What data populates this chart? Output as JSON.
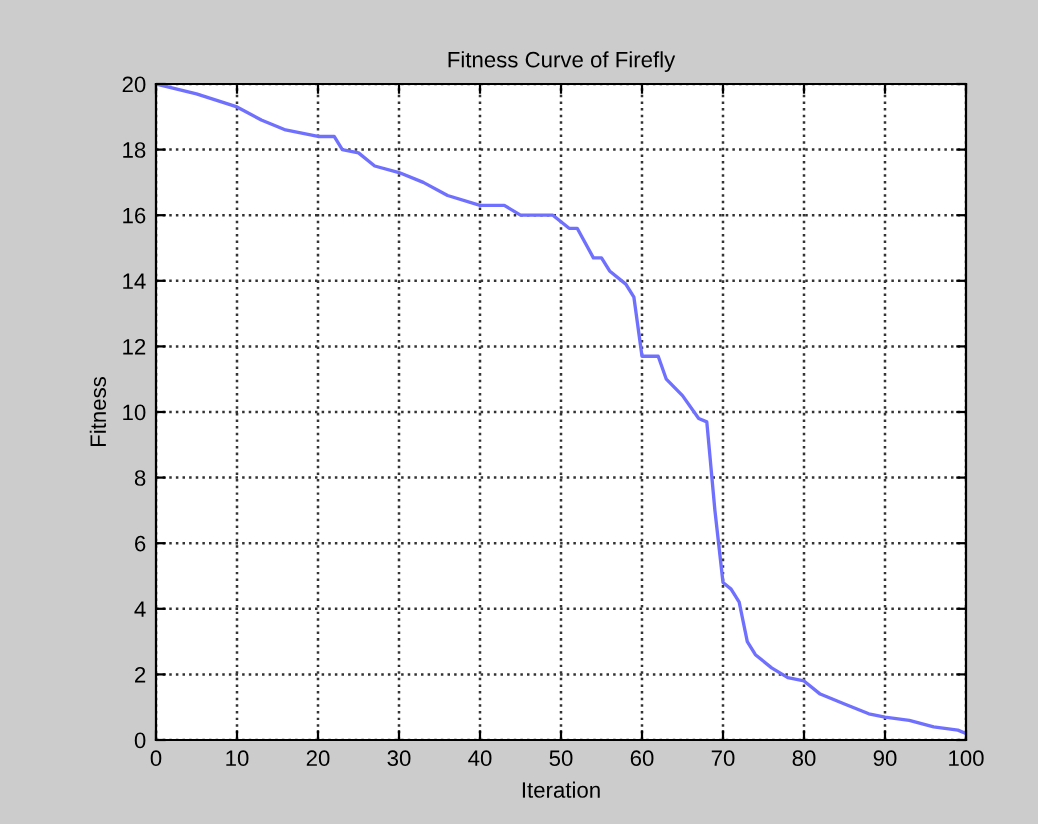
{
  "chart_data": {
    "type": "line",
    "title": "Fitness Curve of Firefly",
    "xlabel": "Iteration",
    "ylabel": "Fitness",
    "xlim": [
      0,
      100
    ],
    "xticks": [
      0,
      10,
      20,
      30,
      40,
      50,
      60,
      70,
      80,
      90,
      100
    ],
    "ylim": [
      0,
      20
    ],
    "yticks": [
      0,
      2,
      4,
      6,
      8,
      10,
      12,
      14,
      16,
      18,
      20
    ],
    "grid": true,
    "line_style": "solid",
    "series": [
      {
        "color": "#7070ff",
        "x": [
          0,
          5,
          10,
          13,
          16,
          20,
          22,
          23,
          25,
          27,
          30,
          33,
          36,
          40,
          43,
          45,
          49,
          51,
          52,
          54,
          55,
          56,
          58,
          59,
          60,
          62,
          63,
          65,
          67,
          68,
          69,
          70,
          71,
          72,
          73,
          74,
          76,
          78,
          80,
          82,
          85,
          88,
          90,
          93,
          96,
          99,
          100
        ],
        "values": [
          20,
          19.7,
          19.3,
          18.9,
          18.6,
          18.4,
          18.4,
          18.0,
          17.9,
          17.5,
          17.3,
          17.0,
          16.6,
          16.3,
          16.3,
          16.0,
          16.0,
          15.6,
          15.6,
          14.7,
          14.7,
          14.3,
          13.9,
          13.5,
          11.7,
          11.7,
          11.0,
          10.5,
          9.8,
          9.7,
          7.0,
          4.8,
          4.6,
          4.2,
          3.0,
          2.6,
          2.2,
          1.9,
          1.8,
          1.4,
          1.1,
          0.8,
          0.7,
          0.6,
          0.4,
          0.3,
          0.2
        ]
      }
    ]
  }
}
